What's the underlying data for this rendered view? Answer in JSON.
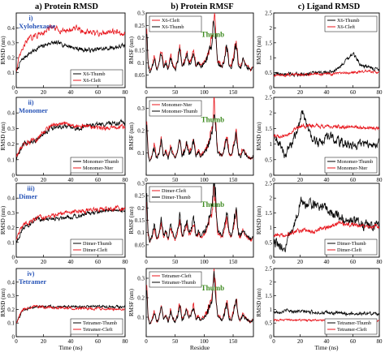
{
  "columns": [
    {
      "id": "a",
      "heading": "a) Protein RMSD"
    },
    {
      "id": "b",
      "heading": "b) Protein RMSF"
    },
    {
      "id": "c",
      "heading": "c) Ligand RMSD"
    }
  ],
  "rows": [
    {
      "id": "i",
      "label_num": "i)",
      "label_name": "Xylohexaose"
    },
    {
      "id": "ii",
      "label_num": "ii)",
      "label_name": "Monomer"
    },
    {
      "id": "iii",
      "label_num": "iii)",
      "label_name": "Dimer"
    },
    {
      "id": "iv",
      "label_num": "iv)",
      "label_name": "Tetramer"
    }
  ],
  "colors": {
    "black": "#000000",
    "red": "#e8141b",
    "label_blue": "#2a56b8",
    "annotation_green": "#3d8a1f"
  },
  "chart_data": [
    {
      "type": "line",
      "panel": "a-i",
      "ylabel": "RMSD (nm)",
      "ylim": [
        0,
        0.5
      ],
      "yticks": [
        "0",
        "0.1",
        "0.2",
        "0.3",
        "0.4"
      ],
      "xlim": [
        0,
        80
      ],
      "xticks": [
        "0",
        "20",
        "40",
        "60",
        "80"
      ],
      "legend": "bottom-right",
      "series": [
        {
          "name": "X6-Thumb",
          "color": "black",
          "base": [
            [
              0,
              0.1
            ],
            [
              3,
              0.17
            ],
            [
              8,
              0.22
            ],
            [
              15,
              0.26
            ],
            [
              25,
              0.3
            ],
            [
              35,
              0.29
            ],
            [
              45,
              0.26
            ],
            [
              55,
              0.25
            ],
            [
              65,
              0.26
            ],
            [
              80,
              0.28
            ]
          ],
          "noise": 0.012
        },
        {
          "name": "X6-Cleft",
          "color": "red",
          "base": [
            [
              0,
              0.12
            ],
            [
              3,
              0.22
            ],
            [
              8,
              0.32
            ],
            [
              15,
              0.35
            ],
            [
              25,
              0.4
            ],
            [
              35,
              0.38
            ],
            [
              45,
              0.4
            ],
            [
              50,
              0.37
            ],
            [
              60,
              0.36
            ],
            [
              70,
              0.38
            ],
            [
              80,
              0.36
            ]
          ],
          "noise": 0.015
        }
      ]
    },
    {
      "type": "line",
      "panel": "b-i",
      "ylabel": "RMSF (nm)",
      "ylim": [
        0,
        0.3
      ],
      "yticks": [
        "0.05",
        "0.1",
        "0.15",
        "0.2",
        "0.25",
        "0.3"
      ],
      "xlim": [
        0,
        185
      ],
      "xticks": [
        "0",
        "50",
        "100",
        "150"
      ],
      "legend": "top-left",
      "annotation": "Thumb",
      "series": [
        {
          "name": "X6-Cleft",
          "color": "red",
          "scale": 1.15
        },
        {
          "name": "X6-Thumb",
          "color": "black",
          "scale": 1.0
        }
      ]
    },
    {
      "type": "line",
      "panel": "c-i",
      "ylabel": "RMSD (nm)",
      "ylim": [
        0,
        2.5
      ],
      "yticks": [
        "0",
        "0.5",
        "1",
        "1.5",
        "2",
        "2.5"
      ],
      "xlim": [
        0,
        80
      ],
      "xticks": [
        "0",
        "20",
        "40",
        "60",
        "80"
      ],
      "legend": "top-right",
      "series": [
        {
          "name": "X6-Thumb",
          "color": "black",
          "base": [
            [
              0,
              0.45
            ],
            [
              20,
              0.45
            ],
            [
              40,
              0.5
            ],
            [
              48,
              0.6
            ],
            [
              55,
              0.95
            ],
            [
              60,
              1.15
            ],
            [
              65,
              0.8
            ],
            [
              70,
              0.7
            ],
            [
              80,
              0.6
            ]
          ],
          "noise": 0.05
        },
        {
          "name": "X6-Cleft",
          "color": "red",
          "base": [
            [
              0,
              0.4
            ],
            [
              20,
              0.45
            ],
            [
              40,
              0.45
            ],
            [
              60,
              0.5
            ],
            [
              70,
              0.55
            ],
            [
              80,
              0.5
            ]
          ],
          "noise": 0.035
        }
      ]
    },
    {
      "type": "line",
      "panel": "a-ii",
      "ylabel": "RMSD (nm)",
      "ylim": [
        0,
        0.5
      ],
      "yticks": [
        "0",
        "0.1",
        "0.2",
        "0.3",
        "0.4"
      ],
      "xlim": [
        0,
        80
      ],
      "xticks": [
        "0",
        "20",
        "40",
        "60",
        "80"
      ],
      "legend": "bottom-right",
      "series": [
        {
          "name": "Monomer-Thumb",
          "color": "black",
          "base": [
            [
              0,
              0.1
            ],
            [
              5,
              0.2
            ],
            [
              15,
              0.23
            ],
            [
              25,
              0.3
            ],
            [
              35,
              0.31
            ],
            [
              45,
              0.3
            ],
            [
              55,
              0.32
            ],
            [
              65,
              0.33
            ],
            [
              80,
              0.34
            ]
          ],
          "noise": 0.012
        },
        {
          "name": "Monomer-Nter",
          "color": "red",
          "base": [
            [
              0,
              0.12
            ],
            [
              5,
              0.2
            ],
            [
              15,
              0.23
            ],
            [
              25,
              0.32
            ],
            [
              35,
              0.33
            ],
            [
              45,
              0.32
            ],
            [
              55,
              0.31
            ],
            [
              65,
              0.3
            ],
            [
              80,
              0.31
            ]
          ],
          "noise": 0.012
        }
      ]
    },
    {
      "type": "line",
      "panel": "b-ii",
      "ylabel": "RMSF (nm)",
      "ylim": [
        0,
        0.35
      ],
      "yticks": [
        "0.1",
        "0.2",
        "0.3"
      ],
      "xlim": [
        0,
        185
      ],
      "xticks": [
        "0",
        "50",
        "100",
        "150"
      ],
      "legend": "top-left",
      "annotation": "Thumb",
      "series": [
        {
          "name": "Monomer-Nter",
          "color": "red",
          "scale": 1.1
        },
        {
          "name": "Monomer-Thumb",
          "color": "black",
          "scale": 1.0
        }
      ]
    },
    {
      "type": "line",
      "panel": "c-ii",
      "ylabel": "RMSD (nm)",
      "ylim": [
        0,
        2.5
      ],
      "yticks": [
        "0",
        "0.5",
        "1",
        "1.5",
        "2",
        "2.5"
      ],
      "xlim": [
        0,
        80
      ],
      "xticks": [
        "0",
        "20",
        "40",
        "60",
        "80"
      ],
      "legend": "bottom-right",
      "series": [
        {
          "name": "Monomer-Thumb",
          "color": "black",
          "base": [
            [
              0,
              1.2
            ],
            [
              5,
              1.0
            ],
            [
              8,
              0.6
            ],
            [
              12,
              0.9
            ],
            [
              18,
              1.4
            ],
            [
              22,
              2.1
            ],
            [
              28,
              1.2
            ],
            [
              35,
              1.0
            ],
            [
              40,
              1.3
            ],
            [
              48,
              1.1
            ],
            [
              60,
              0.95
            ],
            [
              70,
              1.0
            ],
            [
              80,
              1.05
            ]
          ],
          "noise": 0.12
        },
        {
          "name": "Monomer-Nter",
          "color": "red",
          "base": [
            [
              0,
              1.3
            ],
            [
              5,
              1.2
            ],
            [
              10,
              1.3
            ],
            [
              20,
              1.55
            ],
            [
              30,
              1.6
            ],
            [
              40,
              1.55
            ],
            [
              60,
              1.55
            ],
            [
              80,
              1.52
            ]
          ],
          "noise": 0.05
        }
      ]
    },
    {
      "type": "line",
      "panel": "a-iii",
      "ylabel": "RMSD (nm)",
      "ylim": [
        0,
        0.5
      ],
      "yticks": [
        "0",
        "0.1",
        "0.2",
        "0.3",
        "0.4"
      ],
      "xlim": [
        0,
        80
      ],
      "xticks": [
        "0",
        "20",
        "40",
        "60",
        "80"
      ],
      "legend": "bottom-right",
      "series": [
        {
          "name": "Dimer-Thumb",
          "color": "black",
          "base": [
            [
              0,
              0.1
            ],
            [
              5,
              0.2
            ],
            [
              15,
              0.25
            ],
            [
              25,
              0.26
            ],
            [
              35,
              0.27
            ],
            [
              45,
              0.28
            ],
            [
              55,
              0.3
            ],
            [
              65,
              0.31
            ],
            [
              80,
              0.32
            ]
          ],
          "noise": 0.012
        },
        {
          "name": "Dimer-Cleft",
          "color": "red",
          "base": [
            [
              0,
              0.12
            ],
            [
              5,
              0.22
            ],
            [
              15,
              0.26
            ],
            [
              25,
              0.28
            ],
            [
              35,
              0.3
            ],
            [
              45,
              0.31
            ],
            [
              55,
              0.32
            ],
            [
              65,
              0.33
            ],
            [
              80,
              0.33
            ]
          ],
          "noise": 0.012
        }
      ]
    },
    {
      "type": "line",
      "panel": "b-iii",
      "ylabel": "RMSF (nm)",
      "ylim": [
        0,
        0.3
      ],
      "yticks": [
        "0.05",
        "0.1",
        "0.15",
        "0.2",
        "0.25",
        "0.3"
      ],
      "xlim": [
        0,
        185
      ],
      "xticks": [
        "0",
        "50",
        "100",
        "150"
      ],
      "legend": "top-left",
      "annotation": "Thumb",
      "series": [
        {
          "name": "Dimer-Cleft",
          "color": "red",
          "scale": 1.0
        },
        {
          "name": "Dimer-Thumb",
          "color": "black",
          "scale": 1.2
        }
      ]
    },
    {
      "type": "line",
      "panel": "c-iii",
      "ylabel": "RMSD (nm)",
      "ylim": [
        0,
        2.5
      ],
      "yticks": [
        "0",
        "0.5",
        "1",
        "1.5",
        "2",
        "2.5"
      ],
      "xlim": [
        0,
        80
      ],
      "xticks": [
        "0",
        "20",
        "40",
        "60",
        "80"
      ],
      "legend": "bottom-right",
      "series": [
        {
          "name": "Dimer-Thumb",
          "color": "black",
          "base": [
            [
              0,
              0.5
            ],
            [
              8,
              0.3
            ],
            [
              15,
              1.0
            ],
            [
              20,
              1.9
            ],
            [
              28,
              1.7
            ],
            [
              35,
              1.8
            ],
            [
              45,
              1.5
            ],
            [
              55,
              1.2
            ],
            [
              65,
              1.1
            ],
            [
              80,
              1.0
            ]
          ],
          "noise": 0.15
        },
        {
          "name": "Dimer-Cleft",
          "color": "red",
          "base": [
            [
              0,
              0.7
            ],
            [
              10,
              0.8
            ],
            [
              20,
              0.9
            ],
            [
              30,
              0.85
            ],
            [
              40,
              1.0
            ],
            [
              50,
              1.15
            ],
            [
              60,
              1.1
            ],
            [
              70,
              1.05
            ],
            [
              80,
              1.05
            ]
          ],
          "noise": 0.06
        }
      ]
    },
    {
      "type": "line",
      "panel": "a-iv",
      "ylabel": "RMSD (nm)",
      "ylim": [
        0,
        0.5
      ],
      "yticks": [
        "0",
        "0.1",
        "0.2",
        "0.3",
        "0.4"
      ],
      "xlim": [
        0,
        80
      ],
      "xticks": [
        "0",
        "20",
        "40",
        "60",
        "80"
      ],
      "xlabel": "Time (ns)",
      "legend": "bottom-right",
      "series": [
        {
          "name": "Tetramer-Thumb",
          "color": "black",
          "base": [
            [
              0,
              0.1
            ],
            [
              5,
              0.2
            ],
            [
              15,
              0.22
            ],
            [
              30,
              0.22
            ],
            [
              50,
              0.22
            ],
            [
              80,
              0.22
            ]
          ],
          "noise": 0.008
        },
        {
          "name": "Tetramer-Cleft",
          "color": "red",
          "base": [
            [
              0,
              0.1
            ],
            [
              5,
              0.2
            ],
            [
              15,
              0.22
            ],
            [
              30,
              0.21
            ],
            [
              50,
              0.21
            ],
            [
              80,
              0.2
            ]
          ],
          "noise": 0.008
        }
      ]
    },
    {
      "type": "line",
      "panel": "b-iv",
      "ylabel": "RMSF (nm)",
      "ylim": [
        0,
        0.35
      ],
      "yticks": [
        "0.1",
        "0.2",
        "0.3"
      ],
      "xlim": [
        0,
        185
      ],
      "xticks": [
        "0",
        "50",
        "100",
        "150"
      ],
      "xlabel": "Residue",
      "legend": "top-left",
      "annotation": "Thumb",
      "series": [
        {
          "name": "Tetramer-Cleft",
          "color": "red",
          "scale": 1.1
        },
        {
          "name": "Tetramer-Thumb",
          "color": "black",
          "scale": 1.0
        }
      ]
    },
    {
      "type": "line",
      "panel": "c-iv",
      "ylabel": "RMSD (nm)",
      "ylim": [
        0,
        2.5
      ],
      "yticks": [
        "0",
        "0.5",
        "1",
        "1.5",
        "2",
        "2.5"
      ],
      "xlim": [
        0,
        80
      ],
      "xticks": [
        "0",
        "20",
        "40",
        "60",
        "80"
      ],
      "xlabel": "Time (ns)",
      "legend": "bottom-right",
      "series": [
        {
          "name": "Tetramer-Thumb",
          "color": "black",
          "base": [
            [
              0,
              0.9
            ],
            [
              10,
              0.95
            ],
            [
              30,
              0.9
            ],
            [
              50,
              0.85
            ],
            [
              80,
              0.85
            ]
          ],
          "noise": 0.05
        },
        {
          "name": "Tetramer-Cleft",
          "color": "red",
          "base": [
            [
              0,
              0.6
            ],
            [
              10,
              0.62
            ],
            [
              30,
              0.6
            ],
            [
              50,
              0.6
            ],
            [
              80,
              0.58
            ]
          ],
          "noise": 0.03
        }
      ]
    }
  ],
  "rmsf_profile": [
    [
      1,
      0.22
    ],
    [
      3,
      0.1
    ],
    [
      6,
      0.06
    ],
    [
      10,
      0.08
    ],
    [
      14,
      0.12
    ],
    [
      18,
      0.07
    ],
    [
      22,
      0.09
    ],
    [
      26,
      0.14
    ],
    [
      30,
      0.08
    ],
    [
      34,
      0.1
    ],
    [
      38,
      0.07
    ],
    [
      42,
      0.12
    ],
    [
      46,
      0.09
    ],
    [
      50,
      0.07
    ],
    [
      54,
      0.1
    ],
    [
      58,
      0.15
    ],
    [
      62,
      0.08
    ],
    [
      66,
      0.1
    ],
    [
      70,
      0.13
    ],
    [
      74,
      0.09
    ],
    [
      78,
      0.11
    ],
    [
      82,
      0.14
    ],
    [
      86,
      0.08
    ],
    [
      90,
      0.1
    ],
    [
      94,
      0.08
    ],
    [
      98,
      0.09
    ],
    [
      102,
      0.1
    ],
    [
      106,
      0.12
    ],
    [
      110,
      0.15
    ],
    [
      114,
      0.18
    ],
    [
      117,
      0.28
    ],
    [
      120,
      0.2
    ],
    [
      123,
      0.1
    ],
    [
      127,
      0.09
    ],
    [
      131,
      0.08
    ],
    [
      135,
      0.11
    ],
    [
      139,
      0.16
    ],
    [
      143,
      0.09
    ],
    [
      147,
      0.08
    ],
    [
      151,
      0.12
    ],
    [
      155,
      0.18
    ],
    [
      159,
      0.09
    ],
    [
      163,
      0.08
    ],
    [
      167,
      0.11
    ],
    [
      171,
      0.09
    ],
    [
      175,
      0.08
    ],
    [
      180,
      0.07
    ],
    [
      185,
      0.08
    ]
  ]
}
